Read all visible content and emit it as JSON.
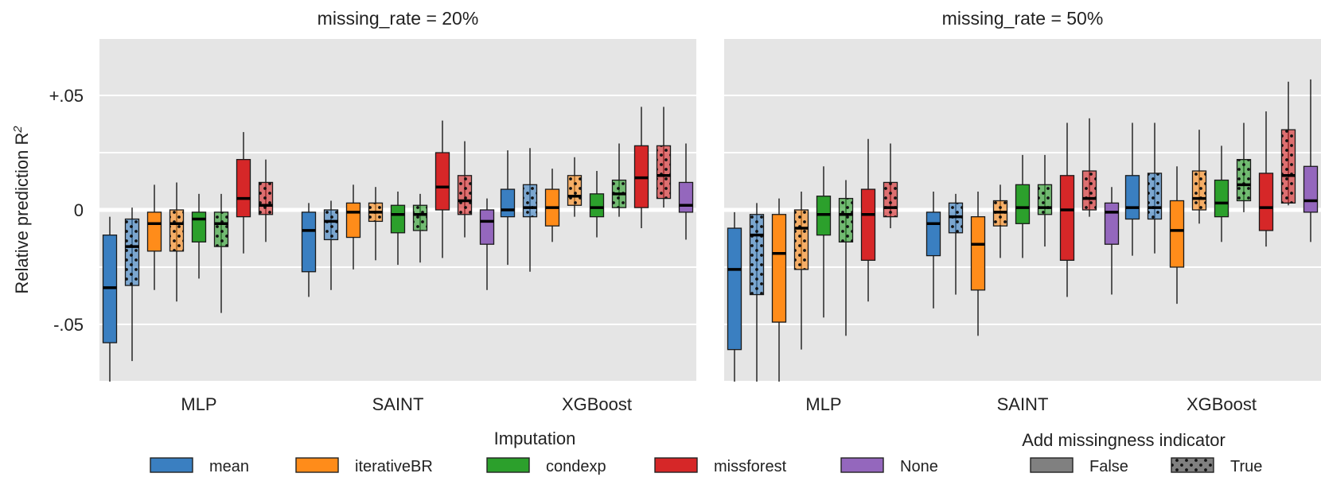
{
  "chart_data": {
    "type": "box",
    "ylabel": "Relative prediction R",
    "ylabel_superscript": "2",
    "ylim": [
      -0.075,
      0.075
    ],
    "yticks": [
      {
        "value": 0.05,
        "label": "+.05"
      },
      {
        "value": 0.0,
        "label": "0"
      },
      {
        "value": -0.05,
        "label": "-.05"
      }
    ],
    "grid": true,
    "colors": {
      "mean": "#3a7fc1",
      "iterativeBR": "#ff8c1a",
      "condexp": "#2ca02c",
      "missforest": "#d62728",
      "None": "#9467bd"
    },
    "panels": [
      {
        "title": "missing_rate = 20%",
        "categories": [
          "MLP",
          "SAINT",
          "XGBoost"
        ],
        "boxes": [
          {
            "model": "MLP",
            "imputation": "mean",
            "indicator": false,
            "whislo": -0.076,
            "q1": -0.058,
            "median": -0.034,
            "q3": -0.011,
            "whishi": -0.003
          },
          {
            "model": "MLP",
            "imputation": "mean",
            "indicator": true,
            "whislo": -0.066,
            "q1": -0.033,
            "median": -0.016,
            "q3": -0.004,
            "whishi": 0.001
          },
          {
            "model": "MLP",
            "imputation": "iterativeBR",
            "indicator": false,
            "whislo": -0.035,
            "q1": -0.018,
            "median": -0.006,
            "q3": -0.001,
            "whishi": 0.011
          },
          {
            "model": "MLP",
            "imputation": "iterativeBR",
            "indicator": true,
            "whislo": -0.04,
            "q1": -0.018,
            "median": -0.006,
            "q3": 0.0,
            "whishi": 0.012
          },
          {
            "model": "MLP",
            "imputation": "condexp",
            "indicator": false,
            "whislo": -0.03,
            "q1": -0.014,
            "median": -0.004,
            "q3": -0.001,
            "whishi": 0.007
          },
          {
            "model": "MLP",
            "imputation": "condexp",
            "indicator": true,
            "whislo": -0.045,
            "q1": -0.016,
            "median": -0.006,
            "q3": -0.001,
            "whishi": 0.007
          },
          {
            "model": "MLP",
            "imputation": "missforest",
            "indicator": false,
            "whislo": -0.019,
            "q1": -0.003,
            "median": 0.005,
            "q3": 0.022,
            "whishi": 0.034
          },
          {
            "model": "MLP",
            "imputation": "missforest",
            "indicator": true,
            "whislo": -0.014,
            "q1": -0.002,
            "median": 0.002,
            "q3": 0.012,
            "whishi": 0.022
          },
          {
            "model": "SAINT",
            "imputation": "mean",
            "indicator": false,
            "whislo": -0.038,
            "q1": -0.027,
            "median": -0.009,
            "q3": -0.001,
            "whishi": 0.003
          },
          {
            "model": "SAINT",
            "imputation": "mean",
            "indicator": true,
            "whislo": -0.035,
            "q1": -0.013,
            "median": -0.005,
            "q3": 0.0,
            "whishi": 0.004
          },
          {
            "model": "SAINT",
            "imputation": "iterativeBR",
            "indicator": false,
            "whislo": -0.026,
            "q1": -0.012,
            "median": -0.001,
            "q3": 0.003,
            "whishi": 0.011
          },
          {
            "model": "SAINT",
            "imputation": "iterativeBR",
            "indicator": true,
            "whislo": -0.022,
            "q1": -0.005,
            "median": -0.001,
            "q3": 0.003,
            "whishi": 0.01
          },
          {
            "model": "SAINT",
            "imputation": "condexp",
            "indicator": false,
            "whislo": -0.024,
            "q1": -0.01,
            "median": -0.002,
            "q3": 0.002,
            "whishi": 0.008
          },
          {
            "model": "SAINT",
            "imputation": "condexp",
            "indicator": true,
            "whislo": -0.023,
            "q1": -0.009,
            "median": -0.002,
            "q3": 0.002,
            "whishi": 0.007
          },
          {
            "model": "SAINT",
            "imputation": "missforest",
            "indicator": false,
            "whislo": -0.021,
            "q1": 0.0,
            "median": 0.01,
            "q3": 0.025,
            "whishi": 0.039
          },
          {
            "model": "SAINT",
            "imputation": "missforest",
            "indicator": true,
            "whislo": -0.012,
            "q1": -0.002,
            "median": 0.004,
            "q3": 0.015,
            "whishi": 0.03
          },
          {
            "model": "SAINT",
            "imputation": "None",
            "indicator": false,
            "whislo": -0.035,
            "q1": -0.015,
            "median": -0.005,
            "q3": 0.0,
            "whishi": 0.005
          },
          {
            "model": "XGBoost",
            "imputation": "mean",
            "indicator": false,
            "whislo": -0.024,
            "q1": -0.003,
            "median": 0.0,
            "q3": 0.009,
            "whishi": 0.026
          },
          {
            "model": "XGBoost",
            "imputation": "mean",
            "indicator": true,
            "whislo": -0.027,
            "q1": -0.003,
            "median": 0.001,
            "q3": 0.011,
            "whishi": 0.027
          },
          {
            "model": "XGBoost",
            "imputation": "iterativeBR",
            "indicator": false,
            "whislo": -0.014,
            "q1": -0.007,
            "median": 0.001,
            "q3": 0.009,
            "whishi": 0.018
          },
          {
            "model": "XGBoost",
            "imputation": "iterativeBR",
            "indicator": true,
            "whislo": -0.003,
            "q1": 0.002,
            "median": 0.006,
            "q3": 0.015,
            "whishi": 0.023
          },
          {
            "model": "XGBoost",
            "imputation": "condexp",
            "indicator": false,
            "whislo": -0.012,
            "q1": -0.003,
            "median": 0.001,
            "q3": 0.007,
            "whishi": 0.017
          },
          {
            "model": "XGBoost",
            "imputation": "condexp",
            "indicator": true,
            "whislo": -0.003,
            "q1": 0.001,
            "median": 0.007,
            "q3": 0.013,
            "whishi": 0.029
          },
          {
            "model": "XGBoost",
            "imputation": "missforest",
            "indicator": false,
            "whislo": -0.008,
            "q1": 0.001,
            "median": 0.014,
            "q3": 0.028,
            "whishi": 0.045
          },
          {
            "model": "XGBoost",
            "imputation": "missforest",
            "indicator": true,
            "whislo": 0.001,
            "q1": 0.005,
            "median": 0.015,
            "q3": 0.028,
            "whishi": 0.045
          },
          {
            "model": "XGBoost",
            "imputation": "None",
            "indicator": false,
            "whislo": -0.013,
            "q1": -0.001,
            "median": 0.002,
            "q3": 0.012,
            "whishi": 0.029
          }
        ]
      },
      {
        "title": "missing_rate = 50%",
        "categories": [
          "MLP",
          "SAINT",
          "XGBoost"
        ],
        "boxes": [
          {
            "model": "MLP",
            "imputation": "mean",
            "indicator": false,
            "whislo": -0.076,
            "q1": -0.061,
            "median": -0.026,
            "q3": -0.008,
            "whishi": -0.001
          },
          {
            "model": "MLP",
            "imputation": "mean",
            "indicator": true,
            "whislo": -0.076,
            "q1": -0.037,
            "median": -0.011,
            "q3": -0.002,
            "whishi": 0.003
          },
          {
            "model": "MLP",
            "imputation": "iterativeBR",
            "indicator": false,
            "whislo": -0.076,
            "q1": -0.049,
            "median": -0.019,
            "q3": -0.002,
            "whishi": 0.005
          },
          {
            "model": "MLP",
            "imputation": "iterativeBR",
            "indicator": true,
            "whislo": -0.061,
            "q1": -0.026,
            "median": -0.008,
            "q3": 0.0,
            "whishi": 0.008
          },
          {
            "model": "MLP",
            "imputation": "condexp",
            "indicator": false,
            "whislo": -0.047,
            "q1": -0.011,
            "median": -0.002,
            "q3": 0.006,
            "whishi": 0.019
          },
          {
            "model": "MLP",
            "imputation": "condexp",
            "indicator": true,
            "whislo": -0.055,
            "q1": -0.014,
            "median": -0.002,
            "q3": 0.005,
            "whishi": 0.013
          },
          {
            "model": "MLP",
            "imputation": "missforest",
            "indicator": false,
            "whislo": -0.04,
            "q1": -0.022,
            "median": -0.002,
            "q3": 0.009,
            "whishi": 0.031
          },
          {
            "model": "MLP",
            "imputation": "missforest",
            "indicator": true,
            "whislo": -0.008,
            "q1": -0.003,
            "median": 0.001,
            "q3": 0.012,
            "whishi": 0.029
          },
          {
            "model": "SAINT",
            "imputation": "mean",
            "indicator": false,
            "whislo": -0.043,
            "q1": -0.02,
            "median": -0.006,
            "q3": -0.001,
            "whishi": 0.008
          },
          {
            "model": "SAINT",
            "imputation": "mean",
            "indicator": true,
            "whislo": -0.037,
            "q1": -0.01,
            "median": -0.003,
            "q3": 0.003,
            "whishi": 0.007
          },
          {
            "model": "SAINT",
            "imputation": "iterativeBR",
            "indicator": false,
            "whislo": -0.055,
            "q1": -0.035,
            "median": -0.015,
            "q3": -0.003,
            "whishi": 0.008
          },
          {
            "model": "SAINT",
            "imputation": "iterativeBR",
            "indicator": true,
            "whislo": -0.021,
            "q1": -0.007,
            "median": -0.001,
            "q3": 0.004,
            "whishi": 0.011
          },
          {
            "model": "SAINT",
            "imputation": "condexp",
            "indicator": false,
            "whislo": -0.021,
            "q1": -0.006,
            "median": 0.001,
            "q3": 0.011,
            "whishi": 0.024
          },
          {
            "model": "SAINT",
            "imputation": "condexp",
            "indicator": true,
            "whislo": -0.016,
            "q1": -0.002,
            "median": 0.001,
            "q3": 0.011,
            "whishi": 0.024
          },
          {
            "model": "SAINT",
            "imputation": "missforest",
            "indicator": false,
            "whislo": -0.038,
            "q1": -0.022,
            "median": 0.0,
            "q3": 0.015,
            "whishi": 0.038
          },
          {
            "model": "SAINT",
            "imputation": "missforest",
            "indicator": true,
            "whislo": -0.003,
            "q1": 0.0,
            "median": 0.005,
            "q3": 0.017,
            "whishi": 0.04
          },
          {
            "model": "SAINT",
            "imputation": "None",
            "indicator": false,
            "whislo": -0.037,
            "q1": -0.015,
            "median": -0.001,
            "q3": 0.003,
            "whishi": 0.01
          },
          {
            "model": "XGBoost",
            "imputation": "mean",
            "indicator": false,
            "whislo": -0.02,
            "q1": -0.004,
            "median": 0.001,
            "q3": 0.015,
            "whishi": 0.038
          },
          {
            "model": "XGBoost",
            "imputation": "mean",
            "indicator": true,
            "whislo": -0.019,
            "q1": -0.004,
            "median": 0.001,
            "q3": 0.016,
            "whishi": 0.038
          },
          {
            "model": "XGBoost",
            "imputation": "iterativeBR",
            "indicator": false,
            "whislo": -0.041,
            "q1": -0.025,
            "median": -0.009,
            "q3": 0.004,
            "whishi": 0.019
          },
          {
            "model": "XGBoost",
            "imputation": "iterativeBR",
            "indicator": true,
            "whislo": -0.006,
            "q1": 0.0,
            "median": 0.005,
            "q3": 0.017,
            "whishi": 0.035
          },
          {
            "model": "XGBoost",
            "imputation": "condexp",
            "indicator": false,
            "whislo": -0.014,
            "q1": -0.003,
            "median": 0.003,
            "q3": 0.013,
            "whishi": 0.028
          },
          {
            "model": "XGBoost",
            "imputation": "condexp",
            "indicator": true,
            "whislo": -0.001,
            "q1": 0.004,
            "median": 0.011,
            "q3": 0.022,
            "whishi": 0.038
          },
          {
            "model": "XGBoost",
            "imputation": "missforest",
            "indicator": false,
            "whislo": -0.016,
            "q1": -0.009,
            "median": 0.001,
            "q3": 0.016,
            "whishi": 0.043
          },
          {
            "model": "XGBoost",
            "imputation": "missforest",
            "indicator": true,
            "whislo": 0.002,
            "q1": 0.003,
            "median": 0.015,
            "q3": 0.035,
            "whishi": 0.056
          },
          {
            "model": "XGBoost",
            "imputation": "None",
            "indicator": false,
            "whislo": -0.014,
            "q1": -0.001,
            "median": 0.004,
            "q3": 0.019,
            "whishi": 0.057
          }
        ]
      }
    ],
    "legends": {
      "imputation": {
        "title": "Imputation",
        "entries": [
          "mean",
          "iterativeBR",
          "condexp",
          "missforest",
          "None"
        ]
      },
      "indicator": {
        "title": "Add missingness indicator",
        "entries": [
          "False",
          "True"
        ]
      }
    }
  }
}
